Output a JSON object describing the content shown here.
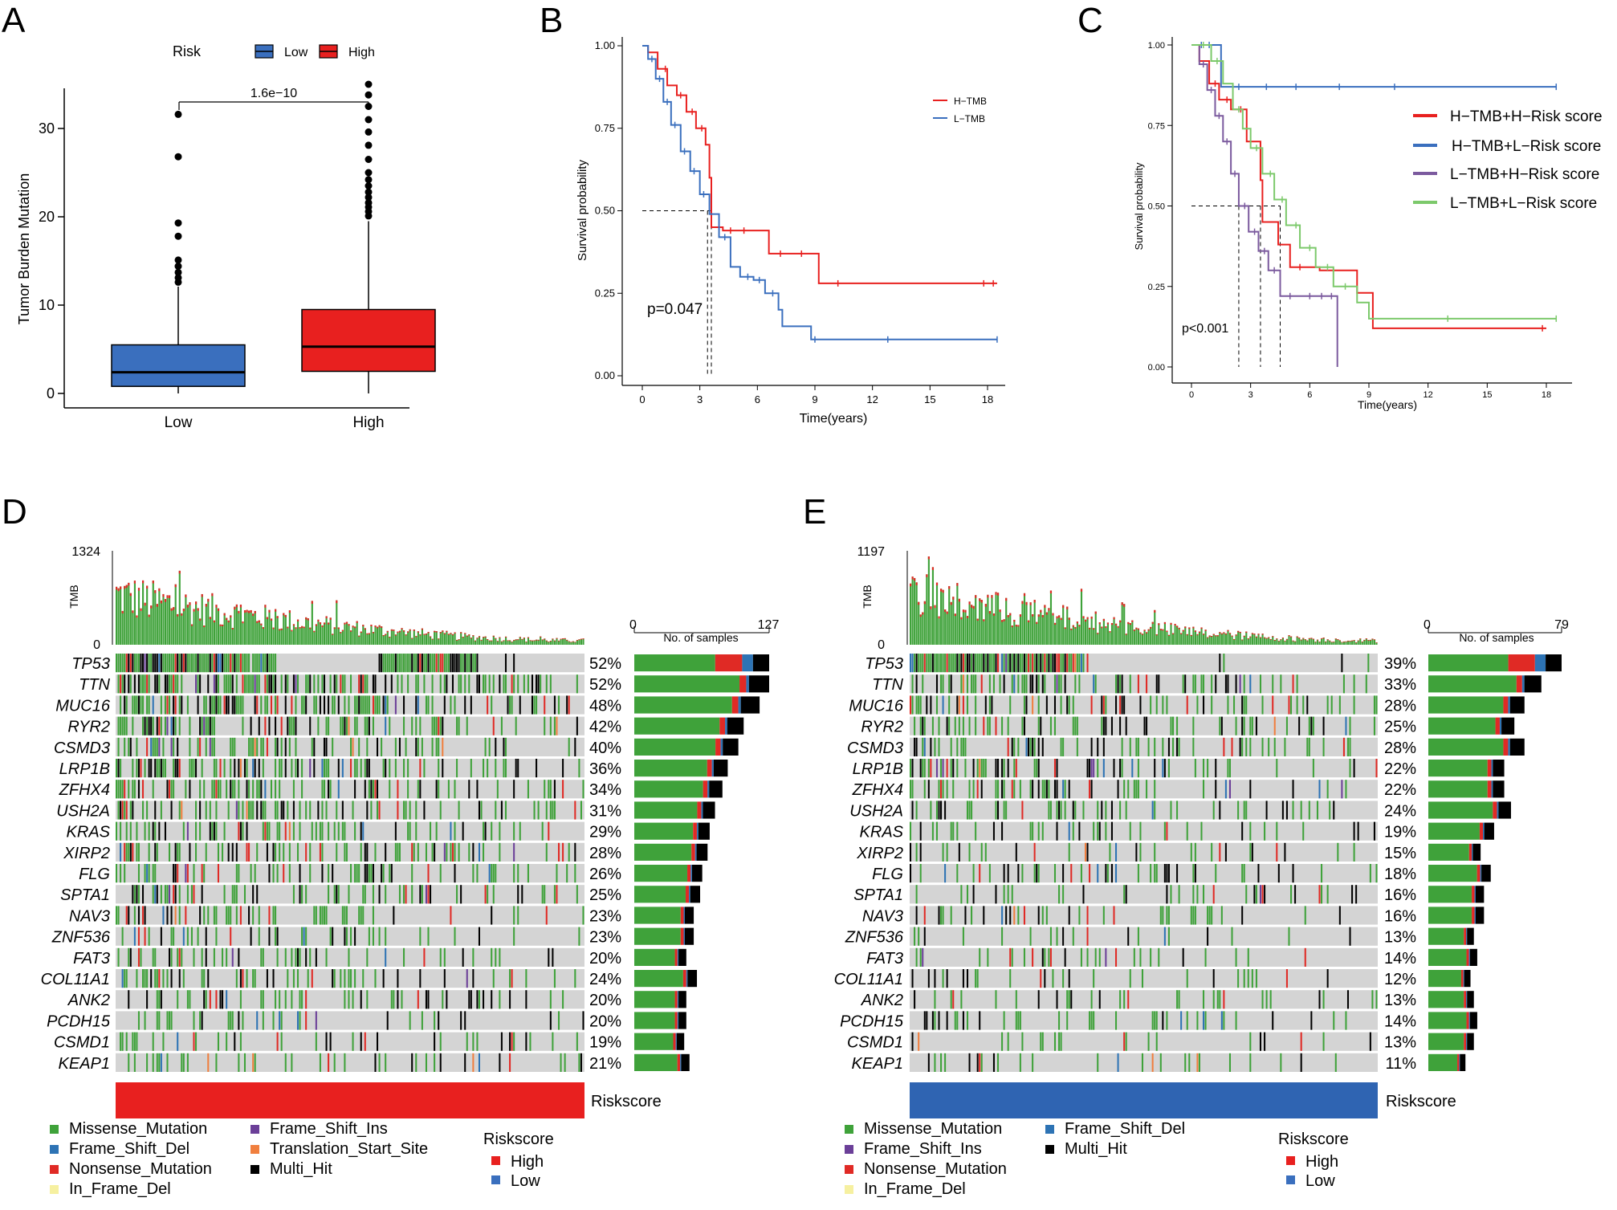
{
  "panel_letters": [
    "A",
    "B",
    "C",
    "D",
    "E"
  ],
  "chart_data": [
    {
      "type": "box",
      "panel": "A",
      "legend_title": "Risk",
      "legend": [
        {
          "name": "Low",
          "color": "#3a6fbe"
        },
        {
          "name": "High",
          "color": "#e8201f"
        }
      ],
      "categories": [
        "Low",
        "High"
      ],
      "ylabel": "Tumor Burden Mutation",
      "yticks": [
        0,
        10,
        20,
        30
      ],
      "ylim": [
        -1.5,
        37.5
      ],
      "pvalue": "1.6e−10",
      "boxes": [
        {
          "name": "Low",
          "color": "#3a6fbe",
          "whisker_low": 0,
          "q1": 0.8,
          "median": 2.4,
          "q3": 5.5,
          "whisker_high": 12.1,
          "outliers": [
            12.6,
            13.1,
            13.7,
            14.4,
            15.1,
            17.8,
            19.3,
            26.8,
            31.6
          ]
        },
        {
          "name": "High",
          "color": "#e8201f",
          "whisker_low": 0,
          "q1": 2.5,
          "median": 5.3,
          "q3": 9.5,
          "whisker_high": 19.5,
          "outliers": [
            20.1,
            20.6,
            21.1,
            21.6,
            22.2,
            22.8,
            23.5,
            24.2,
            25.0,
            26.5,
            28.1,
            29.6,
            31.0,
            32.5,
            33.8,
            35.0
          ]
        }
      ]
    },
    {
      "type": "line",
      "panel": "B",
      "xlabel": "Time(years)",
      "ylabel": "Survival probability",
      "xticks": [
        0,
        3,
        6,
        9,
        12,
        15,
        18
      ],
      "yticks": [
        "0.00",
        "0.25",
        "0.50",
        "0.75",
        "1.00"
      ],
      "xlim": [
        -1,
        19
      ],
      "ylim": [
        -0.05,
        1.05
      ],
      "pvalue": "p=0.047",
      "median_line": 0.5,
      "median_times": [
        3.4,
        3.6
      ],
      "series": [
        {
          "name": "H−TMB",
          "color": "#e8201f",
          "x": [
            0,
            0.3,
            0.8,
            1.3,
            1.8,
            2.3,
            2.8,
            3.3,
            3.5,
            3.6,
            4.2,
            6.6,
            9.2,
            18.5
          ],
          "y": [
            1.0,
            0.98,
            0.93,
            0.88,
            0.85,
            0.8,
            0.75,
            0.7,
            0.6,
            0.45,
            0.44,
            0.37,
            0.28,
            0.28
          ],
          "censor_x": [
            1.2,
            2.0,
            2.6,
            3.1,
            4.6,
            5.3,
            7.2,
            8.3,
            10.2,
            17.8,
            18.3
          ]
        },
        {
          "name": "L−TMB",
          "color": "#3a6fbe",
          "x": [
            0,
            0.3,
            0.7,
            1.1,
            1.5,
            2.0,
            2.5,
            3.0,
            3.5,
            4.0,
            4.6,
            5.1,
            5.8,
            6.4,
            7.1,
            7.3,
            8.8,
            18.5
          ],
          "y": [
            1.0,
            0.96,
            0.9,
            0.83,
            0.76,
            0.68,
            0.62,
            0.55,
            0.49,
            0.42,
            0.33,
            0.3,
            0.29,
            0.25,
            0.2,
            0.15,
            0.11,
            0.11
          ],
          "censor_x": [
            0.5,
            0.9,
            1.3,
            1.7,
            2.2,
            2.7,
            3.2,
            4.3,
            5.5,
            6.1,
            6.8,
            9.0,
            12.8,
            18.5
          ]
        }
      ]
    },
    {
      "type": "line",
      "panel": "C",
      "xlabel": "Time(years)",
      "ylabel": "Survival probability",
      "xticks": [
        0,
        3,
        6,
        9,
        12,
        15,
        18
      ],
      "yticks": [
        "0.00",
        "0.25",
        "0.50",
        "0.75",
        "1.00"
      ],
      "xlim": [
        -1,
        19
      ],
      "ylim": [
        -0.05,
        1.05
      ],
      "pvalue": "p<0.001",
      "median_line": 0.5,
      "median_times": [
        2.4,
        3.5,
        4.5
      ],
      "series": [
        {
          "name": "H−TMB+H−Risk score",
          "color": "#e8201f",
          "x": [
            0,
            0.4,
            0.9,
            1.4,
            2.0,
            2.8,
            3.5,
            3.6,
            4.4,
            5.0,
            6.5,
            8.4,
            9.2,
            18
          ],
          "y": [
            1.0,
            0.95,
            0.88,
            0.83,
            0.8,
            0.7,
            0.58,
            0.45,
            0.38,
            0.31,
            0.3,
            0.23,
            0.12,
            0.12
          ],
          "censor_x": [
            1.2,
            1.8,
            2.5,
            5.5,
            17.8
          ]
        },
        {
          "name": "H−TMB+L−Risk score",
          "color": "#3a6fbe",
          "x": [
            0,
            1.2,
            1.5,
            18.5
          ],
          "y": [
            1.0,
            1.0,
            0.87,
            0.87
          ],
          "censor_x": [
            0.5,
            0.9,
            2.4,
            3.8,
            5.3,
            7.5,
            10.3,
            18.5
          ]
        },
        {
          "name": "L−TMB+H−Risk score",
          "color": "#7b5a9e",
          "x": [
            0,
            0.4,
            0.8,
            1.2,
            1.6,
            2.0,
            2.4,
            2.9,
            3.4,
            3.9,
            4.5,
            5.5,
            7.3,
            7.4
          ],
          "y": [
            1.0,
            0.94,
            0.86,
            0.78,
            0.7,
            0.6,
            0.5,
            0.42,
            0.36,
            0.3,
            0.22,
            0.22,
            0.22,
            0.0
          ],
          "censor_x": [
            0.6,
            1.0,
            1.4,
            1.8,
            2.2,
            2.7,
            3.2,
            3.7,
            4.2,
            5.0,
            6.0,
            6.6,
            7.1
          ]
        },
        {
          "name": "L−TMB+L−Risk score",
          "color": "#7cc96b",
          "x": [
            0,
            1.0,
            1.6,
            2.1,
            2.6,
            3.0,
            3.6,
            4.2,
            4.8,
            5.5,
            6.3,
            7.2,
            8.4,
            9.0,
            18.5
          ],
          "y": [
            1.0,
            0.95,
            0.88,
            0.8,
            0.74,
            0.68,
            0.6,
            0.52,
            0.44,
            0.37,
            0.31,
            0.25,
            0.2,
            0.15,
            0.15
          ],
          "censor_x": [
            0.6,
            1.3,
            2.4,
            3.3,
            4.0,
            4.6,
            5.3,
            6.0,
            6.9,
            7.8,
            13.0,
            18.5
          ]
        }
      ]
    },
    {
      "type": "oncoplot",
      "panel": "D",
      "tmb_label": "TMB",
      "tmb_max": "1324",
      "tmb_min": "0",
      "bar_label": "No. of samples",
      "bar_min": "0",
      "bar_max": "127",
      "riskscore_label": "Riskscore",
      "riskscore_color": "#e8201f",
      "genes": [
        "TP53",
        "TTN",
        "MUC16",
        "RYR2",
        "CSMD3",
        "LRP1B",
        "ZFHX4",
        "USH2A",
        "KRAS",
        "XIRP2",
        "FLG",
        "SPTA1",
        "NAV3",
        "ZNF536",
        "FAT3",
        "COL11A1",
        "ANK2",
        "PCDH15",
        "CSMD1",
        "KEAP1"
      ],
      "percents": [
        "52%",
        "52%",
        "48%",
        "42%",
        "40%",
        "36%",
        "34%",
        "31%",
        "29%",
        "28%",
        "26%",
        "25%",
        "23%",
        "23%",
        "20%",
        "24%",
        "20%",
        "20%",
        "19%",
        "21%"
      ],
      "counts": [
        127,
        127,
        118,
        103,
        98,
        88,
        83,
        76,
        71,
        69,
        64,
        62,
        56,
        56,
        49,
        59,
        49,
        49,
        47,
        52
      ],
      "legend": [
        "Missense_Mutation",
        "Frame_Shift_Del",
        "Nonsense_Mutation",
        "In_Frame_Del",
        "Frame_Shift_Ins",
        "Translation_Start_Site",
        "Multi_Hit"
      ],
      "legend_colors": [
        "#3fa23a",
        "#2d73b4",
        "#e02a25",
        "#f6f0a0",
        "#6b3f98",
        "#f07f3e",
        "#000000"
      ],
      "risk_legend_title": "Riskscore",
      "risk_legend": [
        {
          "name": "High",
          "color": "#e8201f"
        },
        {
          "name": "Low",
          "color": "#3a6fbe"
        }
      ]
    },
    {
      "type": "oncoplot",
      "panel": "E",
      "tmb_label": "TMB",
      "tmb_max": "1197",
      "tmb_min": "0",
      "bar_label": "No. of samples",
      "bar_min": "0",
      "bar_max": "79",
      "riskscore_label": "Riskscore",
      "riskscore_color": "#2f64b2",
      "genes": [
        "TP53",
        "TTN",
        "MUC16",
        "RYR2",
        "CSMD3",
        "LRP1B",
        "ZFHX4",
        "USH2A",
        "KRAS",
        "XIRP2",
        "FLG",
        "SPTA1",
        "NAV3",
        "ZNF536",
        "FAT3",
        "COL11A1",
        "ANK2",
        "PCDH15",
        "CSMD1",
        "KEAP1"
      ],
      "percents": [
        "39%",
        "33%",
        "28%",
        "25%",
        "28%",
        "22%",
        "22%",
        "24%",
        "19%",
        "15%",
        "18%",
        "16%",
        "16%",
        "13%",
        "14%",
        "12%",
        "13%",
        "14%",
        "13%",
        "11%"
      ],
      "counts": [
        79,
        67,
        57,
        51,
        57,
        45,
        45,
        49,
        39,
        31,
        37,
        33,
        33,
        27,
        29,
        25,
        27,
        29,
        27,
        22
      ],
      "legend": [
        "Missense_Mutation",
        "Frame_Shift_Ins",
        "Nonsense_Mutation",
        "In_Frame_Del",
        "Frame_Shift_Del",
        "Multi_Hit"
      ],
      "legend_colors": [
        "#3fa23a",
        "#6b3f98",
        "#e02a25",
        "#f6f0a0",
        "#2d73b4",
        "#000000"
      ],
      "risk_legend_title": "Riskscore",
      "risk_legend": [
        {
          "name": "High",
          "color": "#e8201f"
        },
        {
          "name": "Low",
          "color": "#3a6fbe"
        }
      ]
    }
  ]
}
